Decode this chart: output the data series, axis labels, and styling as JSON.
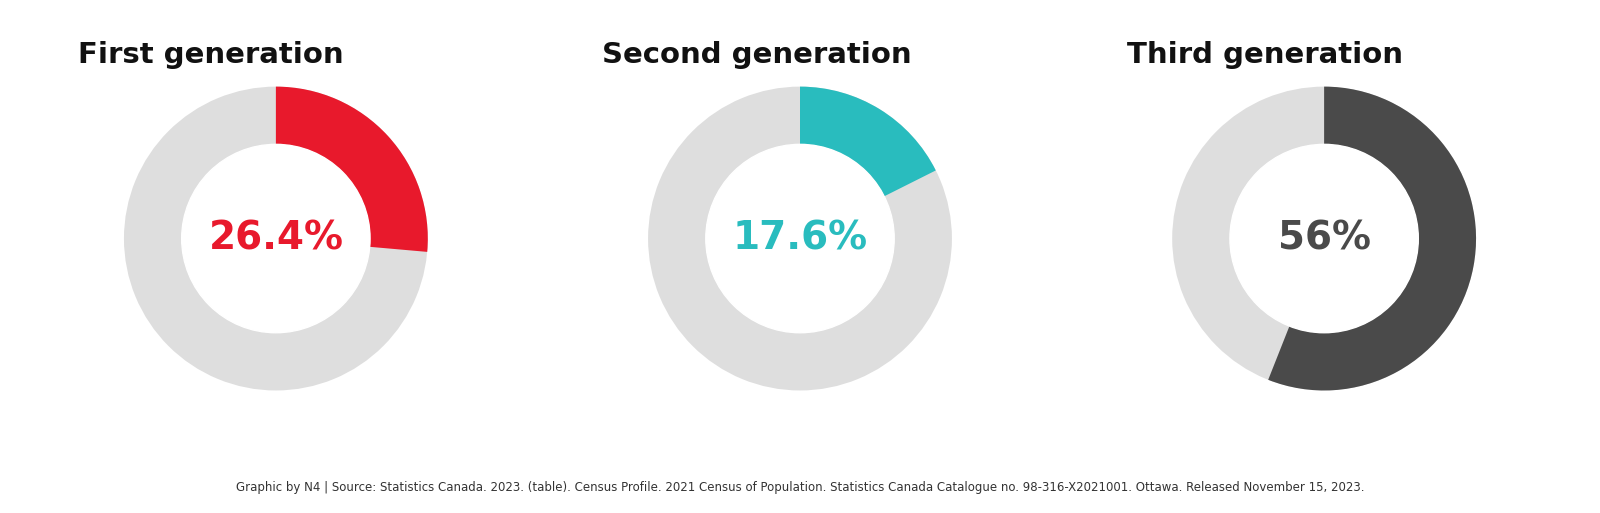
{
  "charts": [
    {
      "title": "First generation",
      "value": 26.4,
      "label": "26.4%",
      "color": "#E8192C",
      "text_color": "#E8192C",
      "bg_color": "#DEDEDE",
      "start_angle": 90
    },
    {
      "title": "Second generation",
      "value": 17.6,
      "label": "17.6%",
      "color": "#29BCBE",
      "text_color": "#29BCBE",
      "bg_color": "#DEDEDE",
      "start_angle": 90
    },
    {
      "title": "Third generation",
      "value": 56.0,
      "label": "56%",
      "color": "#4A4A4A",
      "text_color": "#4A4A4A",
      "bg_color": "#DEDEDE",
      "start_angle": 90
    }
  ],
  "footnote": "Graphic by N4 | Source: Statistics Canada. 2023. (table). Census Profile. 2021 Census of Population. Statistics Canada Catalogue no. 98-316-X2021001. Ottawa. Released November 15, 2023.",
  "background_color": "#FFFFFF",
  "title_fontsize": 21,
  "label_fontsize": 28,
  "footnote_fontsize": 8.5,
  "donut_width": 0.38,
  "outer_r": 1.0
}
